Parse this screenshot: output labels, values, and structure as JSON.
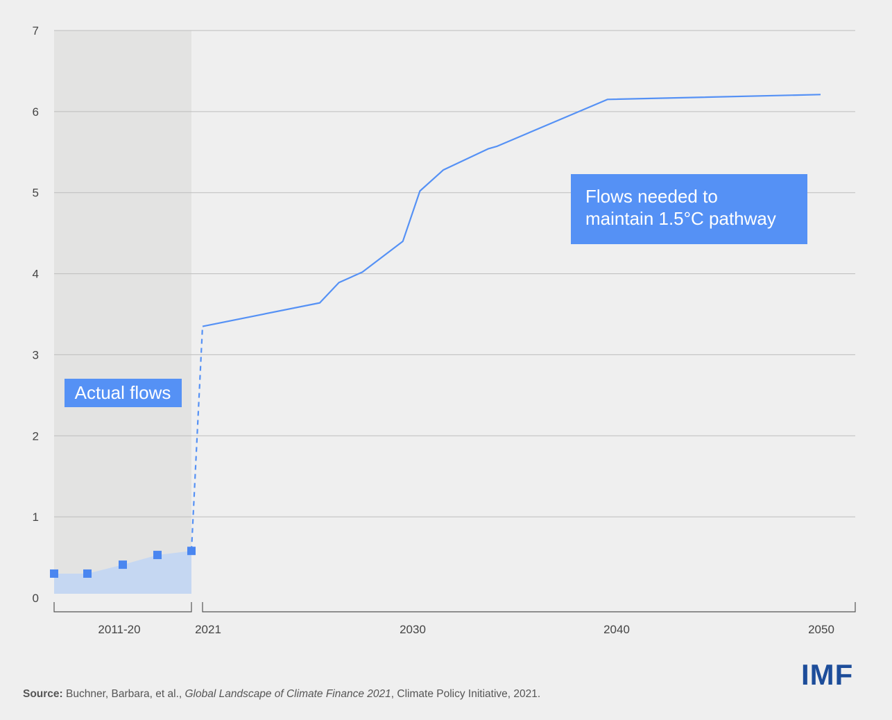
{
  "chart_data": {
    "type": "line",
    "ylim": [
      0,
      7
    ],
    "yticks": [
      "0",
      "1",
      "2",
      "3",
      "4",
      "5",
      "6",
      "7"
    ],
    "xtick_labels": [
      "2011-20",
      "2021",
      "2030",
      "2040",
      "2050"
    ],
    "grid": true,
    "series": [
      {
        "name": "Actual flows",
        "style": "markers with shaded area",
        "points": [
          {
            "x": "2011-20",
            "y": 0.3
          },
          {
            "x": "2011-20",
            "y": 0.3
          },
          {
            "x": "2011-20",
            "y": 0.41
          },
          {
            "x": "2011-20",
            "y": 0.53
          },
          {
            "x": "2011-20",
            "y": 0.58
          }
        ]
      },
      {
        "name": "Flows needed to maintain 1.5°C pathway",
        "style": "line",
        "points": [
          {
            "x": 2021,
            "y": 3.35
          },
          {
            "x": 2026.5,
            "y": 3.64
          },
          {
            "x": 2027.4,
            "y": 3.89
          },
          {
            "x": 2028.5,
            "y": 4.02
          },
          {
            "x": 2030.4,
            "y": 4.4
          },
          {
            "x": 2031.2,
            "y": 5.02
          },
          {
            "x": 2032.3,
            "y": 5.28
          },
          {
            "x": 2034.4,
            "y": 5.54
          },
          {
            "x": 2034.8,
            "y": 5.57
          },
          {
            "x": 2040,
            "y": 6.15
          },
          {
            "x": 2050,
            "y": 6.21
          }
        ]
      }
    ],
    "annotations": {
      "actual_label": "Actual flows",
      "needed_label_lines": [
        "Flows needed to",
        "maintain 1.5°C pathway"
      ]
    },
    "colors": {
      "line": "#5591f5",
      "marker": "#4a86f0",
      "area": "#c5d7f2",
      "shade": "#e3e3e2",
      "label_box": "#5591f5",
      "grid": "#bdbdbd",
      "background": "#efefef"
    }
  },
  "source": {
    "label": "Source:",
    "authors": " Buchner, Barbara, et al., ",
    "title": "Global Landscape of Climate Finance 2021",
    "rest": ", Climate Policy Initiative, 2021."
  },
  "logo": "IMF"
}
